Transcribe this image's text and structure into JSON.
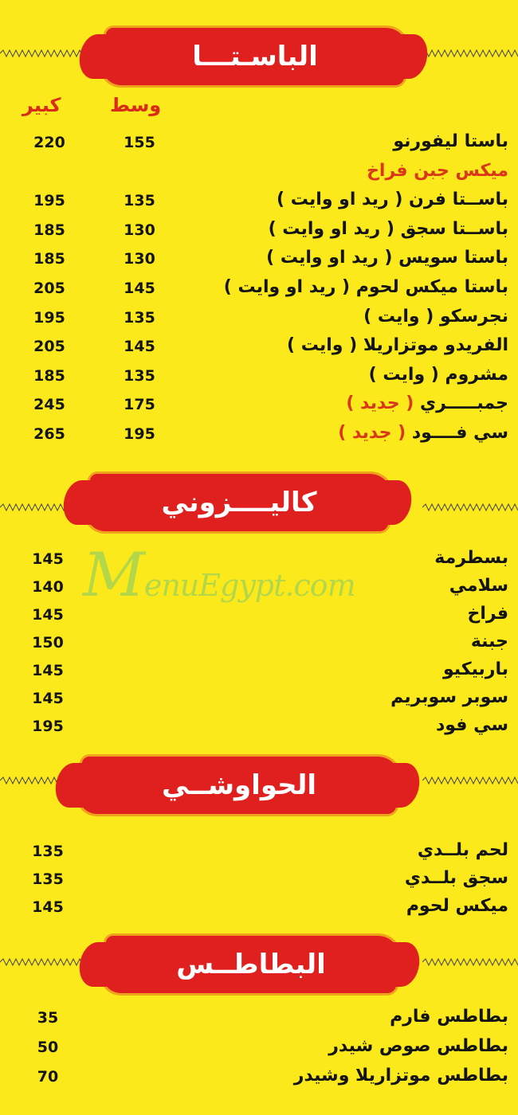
{
  "watermark": "MenuEgypt.com",
  "colors": {
    "background": "#fbe91c",
    "banner": "#e0201f",
    "accent_text": "#d9361a",
    "watermark": "#78c86e"
  },
  "sections": [
    {
      "title": "الباسـتـــا",
      "col_medium": "وسط",
      "col_large": "كبير",
      "items": [
        {
          "name": "باستا ليفورنو",
          "medium": "155",
          "large": "220"
        },
        {
          "name": "ميكس جبن فراخ",
          "subtitle": true
        },
        {
          "name": "باســتا فرن ( ريد او وايت )",
          "medium": "135",
          "large": "195"
        },
        {
          "name": "باســتا سجق ( ريد او وايت )",
          "medium": "130",
          "large": "185"
        },
        {
          "name": "باستا سويس ( ريد او وايت )",
          "medium": "130",
          "large": "185"
        },
        {
          "name": "باستا ميكس لحوم ( ريد او وايت )",
          "medium": "145",
          "large": "205"
        },
        {
          "name": "نجرسكو ( وايت )",
          "medium": "135",
          "large": "195"
        },
        {
          "name": "الفريدو موتزاريلا ( وايت )",
          "medium": "145",
          "large": "205"
        },
        {
          "name": "مشروم ( وايت )",
          "medium": "135",
          "large": "185"
        },
        {
          "name": "جمبـــــري",
          "tag": "( جديد )",
          "medium": "175",
          "large": "245"
        },
        {
          "name": "سي فــــود",
          "tag": "( جديد )",
          "medium": "195",
          "large": "265"
        }
      ]
    },
    {
      "title": "كاليــــزوني",
      "items": [
        {
          "name": "بسطرمة",
          "price": "145"
        },
        {
          "name": "سلامي",
          "price": "140"
        },
        {
          "name": "فراخ",
          "price": "145"
        },
        {
          "name": "جبنة",
          "price": "150"
        },
        {
          "name": "باربيكيو",
          "price": "145"
        },
        {
          "name": "سوبر سوبريم",
          "price": "145"
        },
        {
          "name": "سي فود",
          "price": "195"
        }
      ]
    },
    {
      "title": "الحواوشــي",
      "items": [
        {
          "name": "لحم بلــدي",
          "price": "135"
        },
        {
          "name": "سجق بلــدي",
          "price": "135"
        },
        {
          "name": "ميكس لحوم",
          "price": "145"
        }
      ]
    },
    {
      "title": "البطاطــس",
      "items": [
        {
          "name": "بطاطس فارم",
          "price": "35"
        },
        {
          "name": "بطاطس صوص شيدر",
          "price": "50"
        },
        {
          "name": "بطاطس موتزاريلا وشيدر",
          "price": "70"
        }
      ]
    }
  ]
}
